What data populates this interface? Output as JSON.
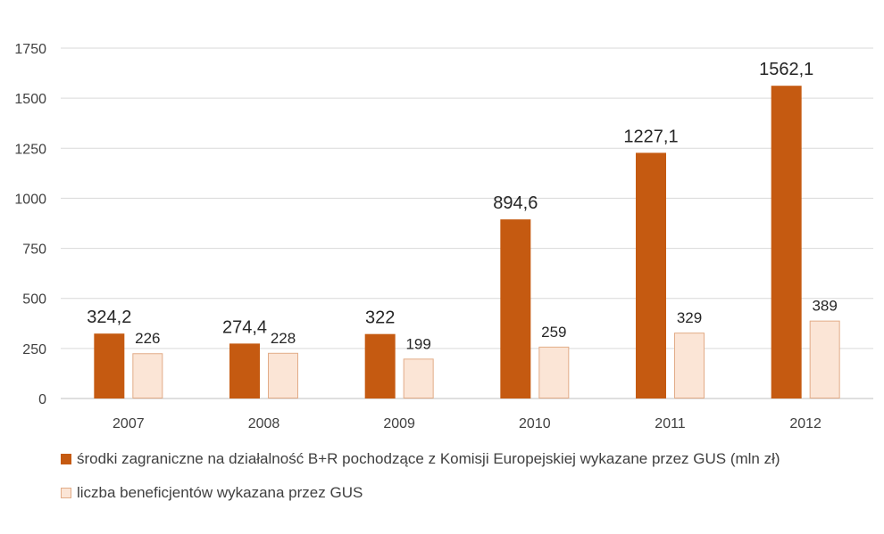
{
  "chart_data": {
    "type": "bar",
    "categories": [
      "2007",
      "2008",
      "2009",
      "2010",
      "2011",
      "2012"
    ],
    "series": [
      {
        "name": "środki zagraniczne na działalność B+R pochodzące z Komisji Europejskiej wykazane przez GUS (mln zł)",
        "values": [
          324.2,
          274.4,
          322,
          894.6,
          1227.1,
          1562.1
        ],
        "labels": [
          "324,2",
          "274,4",
          "322",
          "894,6",
          "1227,1",
          "1562,1"
        ],
        "color": "#C55A11"
      },
      {
        "name": "liczba beneficjentów wykazana przez GUS",
        "values": [
          226,
          228,
          199,
          259,
          329,
          389
        ],
        "labels": [
          "226",
          "228",
          "199",
          "259",
          "329",
          "389"
        ],
        "color": "#FBE5D6",
        "border": "#E2AC88"
      }
    ],
    "y_ticks": [
      "0",
      "250",
      "500",
      "750",
      "1000",
      "1250",
      "1500",
      "1750"
    ],
    "ylim": [
      0,
      1750
    ],
    "grid": true,
    "legend_position": "bottom-left",
    "title": "",
    "xlabel": "",
    "ylabel": ""
  }
}
